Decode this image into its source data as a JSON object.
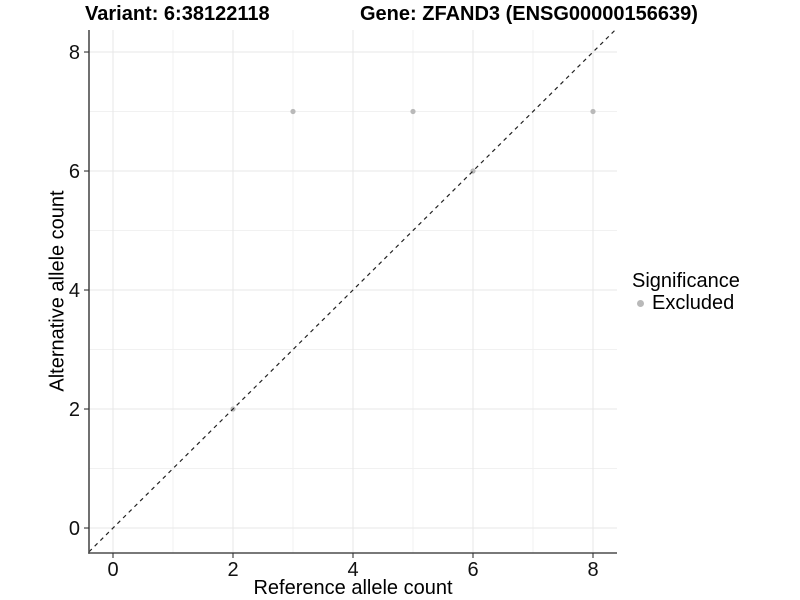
{
  "chart_data": {
    "type": "scatter",
    "title_left": "Variant: 6:38122118",
    "title_right": "Gene: ZFAND3 (ENSG00000156639)",
    "xlabel": "Reference allele count",
    "ylabel": "Alternative allele count",
    "xlim": [
      -0.4,
      8.4
    ],
    "ylim": [
      -0.42,
      8.37
    ],
    "x_ticks": [
      0,
      2,
      4,
      6,
      8
    ],
    "y_ticks": [
      0,
      2,
      4,
      6,
      8
    ],
    "x_minor": [
      1,
      3,
      5,
      7
    ],
    "y_minor": [
      1,
      3,
      5,
      7
    ],
    "grid": true,
    "legend_position": "right",
    "identity_line": {
      "slope": 1,
      "intercept": 0,
      "style": "dashed",
      "color": "#222222"
    },
    "series": [
      {
        "name": "Excluded",
        "color": "#b9b9b9",
        "points": [
          {
            "x": 2,
            "y": 2
          },
          {
            "x": 3,
            "y": 7
          },
          {
            "x": 5,
            "y": 7
          },
          {
            "x": 6,
            "y": 6
          },
          {
            "x": 8,
            "y": 7
          }
        ]
      }
    ],
    "legend": {
      "title": "Significance",
      "entries": [
        {
          "label": "Excluded",
          "color": "#b9b9b9"
        }
      ]
    },
    "colors": {
      "axis_line": "#4d4d4d",
      "tick_mark": "#333333",
      "tick_label": "#111111",
      "grid_major": "#e7e7e7",
      "grid_minor": "#f1f1f1",
      "background": "#ffffff"
    }
  }
}
